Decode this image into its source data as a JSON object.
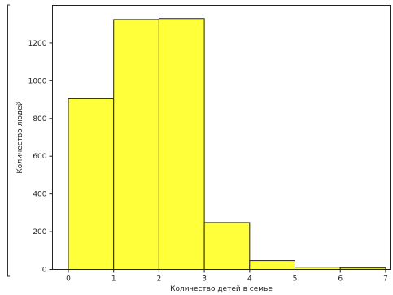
{
  "chart_data": {
    "type": "bar",
    "title": "",
    "xlabel": "Количество детей в семье",
    "ylabel": "Количество людей",
    "bins": [
      [
        0,
        1
      ],
      [
        1,
        2
      ],
      [
        2,
        3
      ],
      [
        3,
        4
      ],
      [
        4,
        5
      ],
      [
        5,
        6
      ],
      [
        6,
        7
      ]
    ],
    "values": [
      905,
      1325,
      1330,
      248,
      47,
      12,
      8
    ],
    "xticks": [
      0,
      1,
      2,
      3,
      4,
      5,
      6,
      7
    ],
    "yticks": [
      0,
      200,
      400,
      600,
      800,
      1000,
      1200
    ],
    "xlim": [
      -0.35,
      7.1
    ],
    "ylim": [
      0,
      1400
    ],
    "grid": false,
    "colors": {
      "bar_fill": "#ffff3a",
      "bar_edge": "#222222"
    }
  }
}
